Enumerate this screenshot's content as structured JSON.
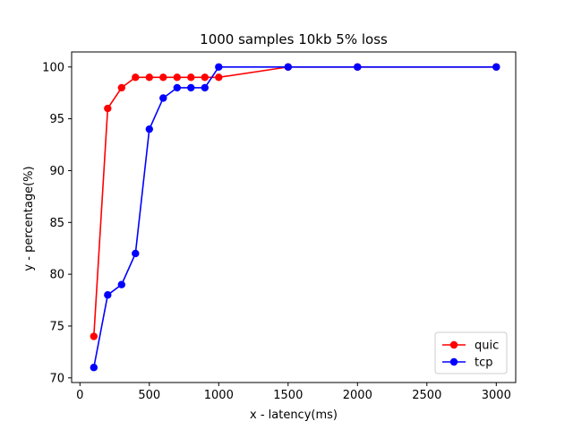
{
  "chart_data": {
    "type": "line",
    "title": "1000 samples 10kb 5% loss",
    "xlabel": "x - latency(ms)",
    "ylabel": "y - percentage(%)",
    "xlim": [
      -60,
      3140
    ],
    "ylim": [
      69.55,
      101.45
    ],
    "xticks": [
      0,
      500,
      1000,
      1500,
      2000,
      2500,
      3000
    ],
    "yticks": [
      70,
      75,
      80,
      85,
      90,
      95,
      100
    ],
    "grid": false,
    "legend": "lower-right",
    "series": [
      {
        "name": "quic",
        "color": "#ff0000",
        "x": [
          100,
          200,
          300,
          400,
          500,
          600,
          700,
          800,
          900,
          1000,
          1500,
          2000,
          3000
        ],
        "y": [
          74,
          96,
          98,
          99,
          99,
          99,
          99,
          99,
          99,
          99,
          100,
          100,
          100
        ]
      },
      {
        "name": "tcp",
        "color": "#0000ff",
        "x": [
          100,
          200,
          300,
          400,
          500,
          600,
          700,
          800,
          900,
          1000,
          1500,
          2000,
          3000
        ],
        "y": [
          71,
          78,
          79,
          82,
          94,
          97,
          98,
          98,
          98,
          100,
          100,
          100,
          100
        ]
      }
    ]
  }
}
